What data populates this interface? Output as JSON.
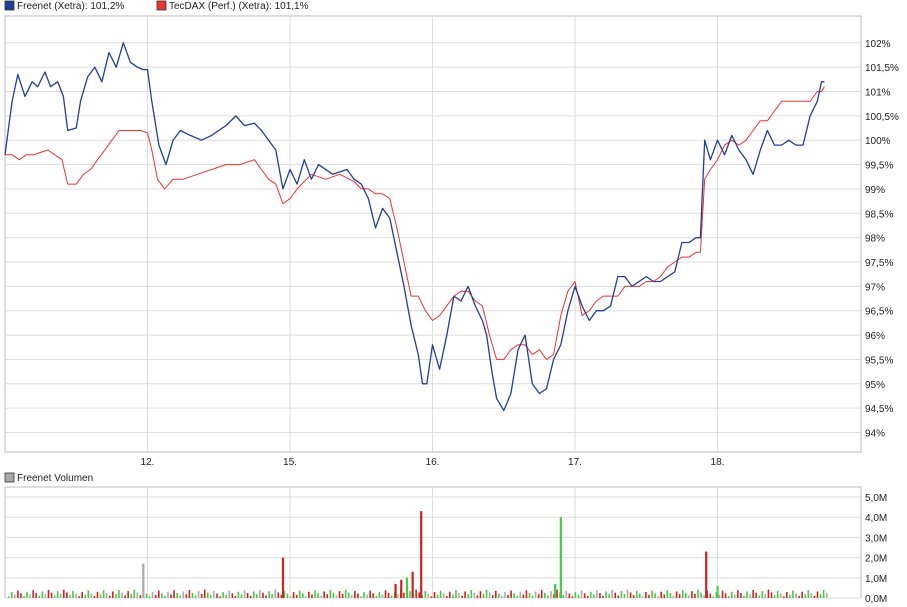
{
  "colors": {
    "freenet": "#1f3f99",
    "tecdax": "#ee3333",
    "volume_up": "#44cc44",
    "volume_down": "#cc2222",
    "volume_neutral": "#aaaaaa",
    "grid": "#dddddd",
    "frame": "#bbbbbb"
  },
  "chart_data": [
    {
      "type": "line",
      "legend": "top-left",
      "grid": true,
      "x_tick_labels": [
        "12.",
        "15.",
        "16.",
        "17.",
        "18."
      ],
      "y_tick_labels": [
        "102%",
        "101,5%",
        "101%",
        "100,5%",
        "100%",
        "99,5%",
        "99%",
        "98,5%",
        "98%",
        "97,5%",
        "97%",
        "96,5%",
        "96%",
        "95,5%",
        "95%",
        "94,5%",
        "94%"
      ],
      "ylim": [
        93.6,
        102.55
      ],
      "x_range": [
        0,
        5.92
      ],
      "series": [
        {
          "name": "Freenet (Xetra): 101,2%",
          "color_key": "freenet",
          "points": [
            [
              0,
              99.7
            ],
            [
              0.05,
              100.8
            ],
            [
              0.09,
              101.35
            ],
            [
              0.14,
              100.9
            ],
            [
              0.19,
              101.2
            ],
            [
              0.23,
              101.1
            ],
            [
              0.28,
              101.4
            ],
            [
              0.32,
              101.1
            ],
            [
              0.37,
              101.2
            ],
            [
              0.41,
              100.9
            ],
            [
              0.44,
              100.2
            ],
            [
              0.5,
              100.25
            ],
            [
              0.53,
              100.8
            ],
            [
              0.58,
              101.3
            ],
            [
              0.63,
              101.5
            ],
            [
              0.68,
              101.2
            ],
            [
              0.73,
              101.8
            ],
            [
              0.78,
              101.5
            ],
            [
              0.83,
              102.0
            ],
            [
              0.88,
              101.6
            ],
            [
              0.93,
              101.5
            ],
            [
              0.97,
              101.45
            ],
            [
              1.0,
              101.45
            ],
            [
              1.03,
              100.8
            ],
            [
              1.08,
              99.9
            ],
            [
              1.13,
              99.5
            ],
            [
              1.18,
              100.0
            ],
            [
              1.23,
              100.2
            ],
            [
              1.3,
              100.1
            ],
            [
              1.38,
              100.0
            ],
            [
              1.45,
              100.1
            ],
            [
              1.55,
              100.3
            ],
            [
              1.62,
              100.5
            ],
            [
              1.68,
              100.3
            ],
            [
              1.75,
              100.35
            ],
            [
              1.8,
              100.2
            ],
            [
              1.85,
              100.0
            ],
            [
              1.9,
              99.8
            ],
            [
              1.95,
              99.0
            ],
            [
              2.0,
              99.4
            ],
            [
              2.05,
              99.1
            ],
            [
              2.1,
              99.6
            ],
            [
              2.15,
              99.2
            ],
            [
              2.2,
              99.5
            ],
            [
              2.3,
              99.3
            ],
            [
              2.4,
              99.4
            ],
            [
              2.45,
              99.2
            ],
            [
              2.5,
              99.1
            ],
            [
              2.55,
              98.8
            ],
            [
              2.6,
              98.2
            ],
            [
              2.65,
              98.6
            ],
            [
              2.7,
              98.4
            ],
            [
              2.75,
              97.7
            ],
            [
              2.8,
              97.0
            ],
            [
              2.85,
              96.2
            ],
            [
              2.9,
              95.6
            ],
            [
              2.93,
              95.0
            ],
            [
              2.96,
              95.0
            ],
            [
              3.0,
              95.8
            ],
            [
              3.05,
              95.3
            ],
            [
              3.1,
              96.0
            ],
            [
              3.15,
              96.8
            ],
            [
              3.2,
              96.7
            ],
            [
              3.25,
              97.0
            ],
            [
              3.3,
              96.6
            ],
            [
              3.35,
              96.3
            ],
            [
              3.38,
              96.0
            ],
            [
              3.42,
              95.2
            ],
            [
              3.45,
              94.7
            ],
            [
              3.5,
              94.45
            ],
            [
              3.55,
              94.8
            ],
            [
              3.6,
              95.7
            ],
            [
              3.65,
              96.0
            ],
            [
              3.7,
              95.0
            ],
            [
              3.75,
              94.8
            ],
            [
              3.8,
              94.9
            ],
            [
              3.85,
              95.5
            ],
            [
              3.9,
              95.8
            ],
            [
              3.95,
              96.5
            ],
            [
              4.0,
              97.0
            ],
            [
              4.05,
              96.6
            ],
            [
              4.1,
              96.3
            ],
            [
              4.15,
              96.5
            ],
            [
              4.2,
              96.5
            ],
            [
              4.25,
              96.6
            ],
            [
              4.3,
              97.2
            ],
            [
              4.35,
              97.2
            ],
            [
              4.4,
              97.0
            ],
            [
              4.45,
              97.1
            ],
            [
              4.5,
              97.2
            ],
            [
              4.55,
              97.1
            ],
            [
              4.6,
              97.1
            ],
            [
              4.65,
              97.2
            ],
            [
              4.7,
              97.3
            ],
            [
              4.75,
              97.9
            ],
            [
              4.8,
              97.9
            ],
            [
              4.85,
              98.0
            ],
            [
              4.88,
              98.0
            ],
            [
              4.91,
              100.0
            ],
            [
              4.95,
              99.6
            ],
            [
              5.0,
              100.0
            ],
            [
              5.05,
              99.7
            ],
            [
              5.1,
              100.1
            ],
            [
              5.15,
              99.8
            ],
            [
              5.2,
              99.6
            ],
            [
              5.25,
              99.3
            ],
            [
              5.3,
              99.8
            ],
            [
              5.35,
              100.2
            ],
            [
              5.4,
              99.9
            ],
            [
              5.45,
              99.9
            ],
            [
              5.5,
              100.0
            ],
            [
              5.55,
              99.9
            ],
            [
              5.6,
              99.9
            ],
            [
              5.65,
              100.5
            ],
            [
              5.7,
              100.8
            ],
            [
              5.73,
              101.2
            ],
            [
              5.75,
              101.2
            ]
          ]
        },
        {
          "name": "TecDAX (Perf.) (Xetra): 101,1%",
          "color_key": "tecdax",
          "points": [
            [
              0,
              99.7
            ],
            [
              0.05,
              99.7
            ],
            [
              0.1,
              99.6
            ],
            [
              0.15,
              99.7
            ],
            [
              0.2,
              99.7
            ],
            [
              0.25,
              99.75
            ],
            [
              0.3,
              99.8
            ],
            [
              0.35,
              99.7
            ],
            [
              0.4,
              99.6
            ],
            [
              0.44,
              99.1
            ],
            [
              0.5,
              99.1
            ],
            [
              0.55,
              99.3
            ],
            [
              0.6,
              99.4
            ],
            [
              0.65,
              99.6
            ],
            [
              0.7,
              99.8
            ],
            [
              0.75,
              100.0
            ],
            [
              0.8,
              100.2
            ],
            [
              0.85,
              100.2
            ],
            [
              0.9,
              100.2
            ],
            [
              0.95,
              100.2
            ],
            [
              1.0,
              100.15
            ],
            [
              1.03,
              99.8
            ],
            [
              1.07,
              99.2
            ],
            [
              1.12,
              99.0
            ],
            [
              1.18,
              99.2
            ],
            [
              1.25,
              99.2
            ],
            [
              1.35,
              99.3
            ],
            [
              1.45,
              99.4
            ],
            [
              1.55,
              99.5
            ],
            [
              1.65,
              99.5
            ],
            [
              1.75,
              99.6
            ],
            [
              1.8,
              99.4
            ],
            [
              1.85,
              99.2
            ],
            [
              1.9,
              99.1
            ],
            [
              1.95,
              98.7
            ],
            [
              2.0,
              98.8
            ],
            [
              2.05,
              99.0
            ],
            [
              2.15,
              99.3
            ],
            [
              2.25,
              99.2
            ],
            [
              2.35,
              99.3
            ],
            [
              2.45,
              99.15
            ],
            [
              2.5,
              99.0
            ],
            [
              2.55,
              99.0
            ],
            [
              2.6,
              98.9
            ],
            [
              2.65,
              98.9
            ],
            [
              2.7,
              98.8
            ],
            [
              2.75,
              98.2
            ],
            [
              2.8,
              97.5
            ],
            [
              2.85,
              96.8
            ],
            [
              2.9,
              96.8
            ],
            [
              2.95,
              96.5
            ],
            [
              3.0,
              96.3
            ],
            [
              3.05,
              96.4
            ],
            [
              3.1,
              96.6
            ],
            [
              3.15,
              96.8
            ],
            [
              3.2,
              96.9
            ],
            [
              3.25,
              96.9
            ],
            [
              3.3,
              96.7
            ],
            [
              3.35,
              96.6
            ],
            [
              3.4,
              96.0
            ],
            [
              3.45,
              95.5
            ],
            [
              3.5,
              95.5
            ],
            [
              3.55,
              95.7
            ],
            [
              3.6,
              95.8
            ],
            [
              3.65,
              95.8
            ],
            [
              3.7,
              95.6
            ],
            [
              3.75,
              95.7
            ],
            [
              3.8,
              95.5
            ],
            [
              3.85,
              95.6
            ],
            [
              3.9,
              96.4
            ],
            [
              3.95,
              96.9
            ],
            [
              4.0,
              97.1
            ],
            [
              4.05,
              96.4
            ],
            [
              4.1,
              96.5
            ],
            [
              4.15,
              96.7
            ],
            [
              4.2,
              96.8
            ],
            [
              4.25,
              96.8
            ],
            [
              4.3,
              96.8
            ],
            [
              4.35,
              97.0
            ],
            [
              4.4,
              97.0
            ],
            [
              4.45,
              97.0
            ],
            [
              4.5,
              97.1
            ],
            [
              4.55,
              97.1
            ],
            [
              4.6,
              97.2
            ],
            [
              4.65,
              97.4
            ],
            [
              4.7,
              97.5
            ],
            [
              4.75,
              97.6
            ],
            [
              4.8,
              97.6
            ],
            [
              4.85,
              97.7
            ],
            [
              4.88,
              97.7
            ],
            [
              4.91,
              99.2
            ],
            [
              4.95,
              99.4
            ],
            [
              5.0,
              99.6
            ],
            [
              5.05,
              99.9
            ],
            [
              5.1,
              100.0
            ],
            [
              5.15,
              99.9
            ],
            [
              5.2,
              100.0
            ],
            [
              5.25,
              100.2
            ],
            [
              5.3,
              100.4
            ],
            [
              5.35,
              100.4
            ],
            [
              5.4,
              100.6
            ],
            [
              5.45,
              100.8
            ],
            [
              5.5,
              100.8
            ],
            [
              5.55,
              100.8
            ],
            [
              5.6,
              100.8
            ],
            [
              5.65,
              100.8
            ],
            [
              5.7,
              101.0
            ],
            [
              5.73,
              101.0
            ],
            [
              5.75,
              101.1
            ]
          ]
        }
      ]
    },
    {
      "type": "bar",
      "legend": "top-left",
      "grid": true,
      "series": [
        {
          "name": "Freenet Volumen"
        }
      ],
      "y_tick_labels": [
        "5,0M",
        "4,0M",
        "3,0M",
        "2,0M",
        "1,0M",
        "0,0M"
      ],
      "ylim": [
        0,
        5.0
      ],
      "unit": "M",
      "spikes": [
        {
          "x": 0.97,
          "value": 1.7,
          "color_key": "volume_neutral"
        },
        {
          "x": 1.95,
          "value": 2.0,
          "color_key": "volume_down"
        },
        {
          "x": 2.92,
          "value": 4.3,
          "color_key": "volume_down"
        },
        {
          "x": 2.86,
          "value": 1.3,
          "color_key": "volume_down"
        },
        {
          "x": 2.82,
          "value": 1.0,
          "color_key": "volume_up"
        },
        {
          "x": 2.78,
          "value": 0.9,
          "color_key": "volume_down"
        },
        {
          "x": 2.74,
          "value": 0.7,
          "color_key": "volume_down"
        },
        {
          "x": 3.9,
          "value": 4.0,
          "color_key": "volume_up"
        },
        {
          "x": 3.86,
          "value": 0.7,
          "color_key": "volume_up"
        },
        {
          "x": 4.92,
          "value": 2.3,
          "color_key": "volume_down"
        },
        {
          "x": 5.0,
          "value": 0.6,
          "color_key": "volume_up"
        }
      ]
    }
  ]
}
